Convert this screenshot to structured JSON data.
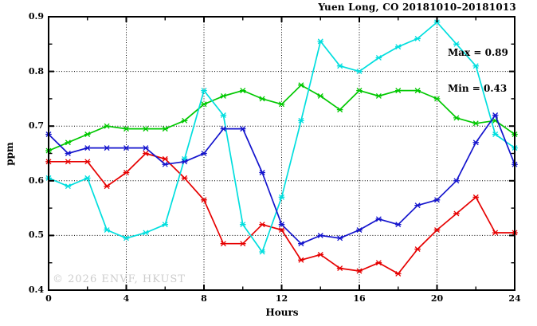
{
  "header": {
    "title": "Yuen Long, CO 20181010–20181013"
  },
  "annotation": {
    "max_label": "Max = 0.89",
    "min_label": "Min = 0.43"
  },
  "watermark": "© 2026 ENVF, HKUST",
  "chart_data": {
    "type": "line",
    "title": "Yuen Long, CO 20181010–20181013",
    "xlabel": "Hours",
    "ylabel": "ppm",
    "xlim": [
      0,
      24
    ],
    "ylim": [
      0.4,
      0.9
    ],
    "grid": "dotted gridlines at major ticks, full box border, inward ticks",
    "legend_position": "none",
    "overall_max": 0.89,
    "overall_min": 0.43,
    "x_major_ticks": [
      0,
      4,
      8,
      12,
      16,
      20,
      24
    ],
    "x_tick_labels": [
      "0",
      "4",
      "8",
      "12",
      "16",
      "20",
      "24"
    ],
    "x_minor_ticks": [
      2,
      6,
      10,
      14,
      18,
      22
    ],
    "y_major_ticks": [
      0.4,
      0.5,
      0.6,
      0.7,
      0.8,
      0.9
    ],
    "y_tick_labels": [
      "0.4",
      "0.5",
      "0.6",
      "0.7",
      "0.8",
      "0.9"
    ],
    "y_minor_ticks": [
      0.45,
      0.55,
      0.65,
      0.75,
      0.85
    ],
    "x": [
      0,
      1,
      2,
      3,
      4,
      5,
      6,
      7,
      8,
      9,
      10,
      11,
      12,
      13,
      14,
      15,
      16,
      17,
      18,
      19,
      20,
      21,
      22,
      23,
      24
    ],
    "series": [
      {
        "name": "red",
        "color": "#e60000",
        "marker": "star",
        "values": [
          0.635,
          0.635,
          0.635,
          0.59,
          0.615,
          0.65,
          0.64,
          0.605,
          0.565,
          0.485,
          0.485,
          0.52,
          0.51,
          0.455,
          0.465,
          0.44,
          0.435,
          0.45,
          0.43,
          0.475,
          0.51,
          0.54,
          0.57,
          0.505,
          0.505
        ]
      },
      {
        "name": "green",
        "color": "#00c800",
        "marker": "star",
        "values": [
          0.655,
          0.67,
          0.685,
          0.7,
          0.695,
          0.695,
          0.695,
          0.71,
          0.74,
          0.755,
          0.765,
          0.75,
          0.74,
          0.775,
          0.755,
          0.73,
          0.765,
          0.755,
          0.765,
          0.765,
          0.75,
          0.715,
          0.705,
          0.71,
          0.685
        ]
      },
      {
        "name": "cyan",
        "color": "#00dede",
        "marker": "star",
        "values": [
          0.605,
          0.59,
          0.605,
          0.51,
          0.495,
          0.505,
          0.52,
          0.64,
          0.765,
          0.72,
          0.52,
          0.47,
          0.57,
          0.71,
          0.855,
          0.81,
          0.8,
          0.825,
          0.845,
          0.86,
          0.89,
          0.85,
          0.81,
          0.685,
          0.66
        ]
      },
      {
        "name": "blue",
        "color": "#1414cd",
        "marker": "star",
        "values": [
          0.685,
          0.65,
          0.66,
          0.66,
          0.66,
          0.66,
          0.63,
          0.635,
          0.65,
          0.695,
          0.695,
          0.615,
          0.52,
          0.485,
          0.5,
          0.495,
          0.51,
          0.53,
          0.52,
          0.555,
          0.565,
          0.6,
          0.67,
          0.72,
          0.63
        ]
      }
    ]
  }
}
